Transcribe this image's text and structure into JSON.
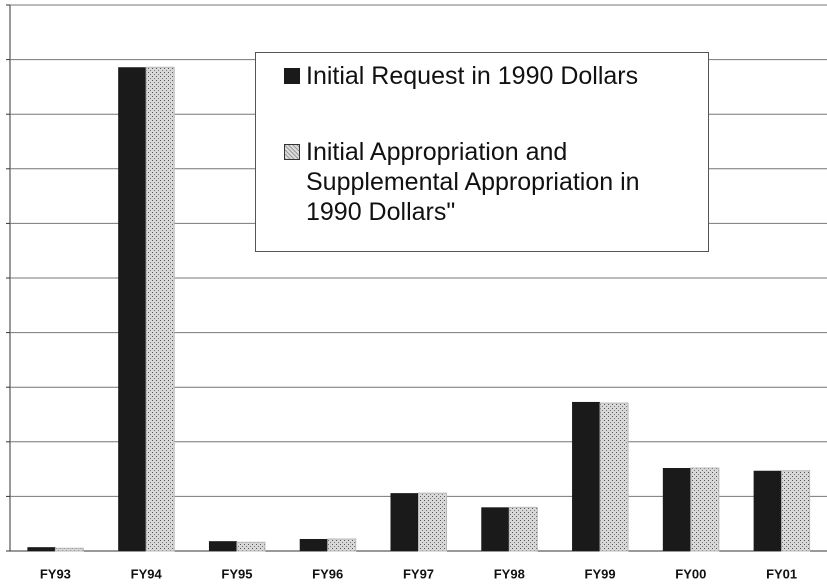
{
  "chart_data": {
    "type": "bar",
    "categories": [
      "FY93",
      "FY94",
      "FY95",
      "FY96",
      "FY97",
      "FY98",
      "FY99",
      "FY00",
      "FY01"
    ],
    "series": [
      {
        "name": "Initial Request in 1990 Dollars",
        "color": "#1a1a1a",
        "values": [
          0.07,
          8.86,
          0.18,
          0.22,
          1.06,
          0.8,
          2.73,
          1.52,
          1.47
        ]
      },
      {
        "name": "Initial Appropriation and Supplemental Appropriation in 1990 Dollars\"",
        "color": "#b8b8b8",
        "values": [
          0.05,
          8.86,
          0.16,
          0.22,
          1.06,
          0.8,
          2.71,
          1.52,
          1.47
        ]
      }
    ],
    "ylim": [
      0,
      10
    ],
    "yticks": [
      0,
      1,
      2,
      3,
      4,
      5,
      6,
      7,
      8,
      9,
      10
    ],
    "grid": true,
    "legend": "top-right"
  }
}
